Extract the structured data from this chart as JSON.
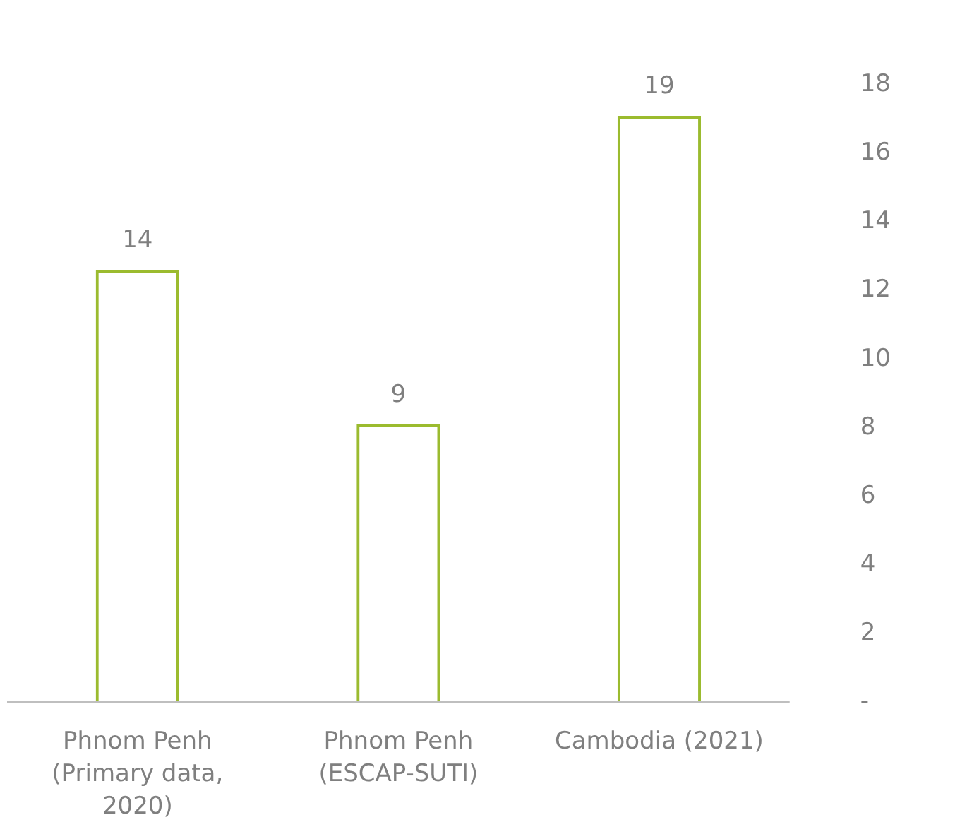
{
  "chart_data": {
    "type": "bar",
    "categories": [
      "Phnom Penh (Primary data, 2020)",
      "Phnom Penh (ESCAP-SUTI)",
      "Cambodia (2021)"
    ],
    "series": [
      {
        "color": "#9bbb2f",
        "values": [
          14,
          9,
          19
        ]
      }
    ],
    "data_labels": true,
    "y2lim": [
      0,
      18
    ],
    "y2ticks": [
      {
        "value": 0,
        "label": "-"
      },
      2,
      4,
      6,
      8,
      10,
      12,
      14,
      16,
      18
    ],
    "grid": false,
    "legend": false
  }
}
